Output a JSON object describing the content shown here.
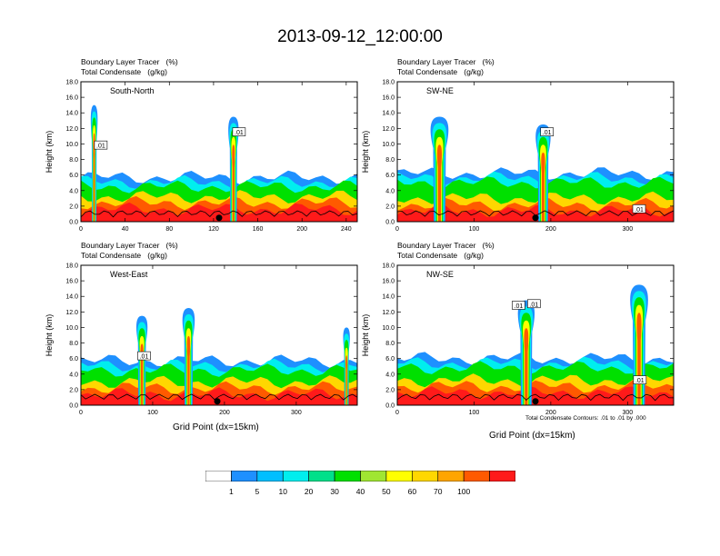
{
  "title": "2013-09-12_12:00:00",
  "footnote": "Total Condensate Contours: .01 to .01 by .000",
  "xlabel": "Grid Point (dx=15km)",
  "colorbar": {
    "colors": [
      "#ffffff",
      "#1e90ff",
      "#00bfff",
      "#00eeee",
      "#00e08a",
      "#00e000",
      "#a0e632",
      "#ffff00",
      "#ffd700",
      "#ffa500",
      "#ff5a00",
      "#ff1a1a"
    ],
    "labels": [
      "1",
      "5",
      "10",
      "20",
      "30",
      "40",
      "50",
      "60",
      "70",
      "100"
    ]
  },
  "chart_data": [
    {
      "type": "heatmap",
      "title_line1": "Boundary Layer Tracer   (%)",
      "title_line2": "Total Condensate   (g/kg)",
      "annotation": "South-North",
      "ylabel": "Height (km)",
      "xlabel": "",
      "xlim": [
        0,
        250
      ],
      "xticks": [
        "0",
        "40",
        "80",
        "120",
        "160",
        "200",
        "240"
      ],
      "xtick_values": [
        0,
        40,
        80,
        120,
        160,
        200,
        240
      ],
      "ylim": [
        0,
        18
      ],
      "yticks": [
        "0.0",
        "2.0",
        "4.0",
        "6.0",
        "8.0",
        "10.0",
        "12.0",
        "14.0",
        "16.0",
        "18.0"
      ],
      "contour_labels": [
        {
          "text": ".01",
          "x": 18,
          "y": 9.8
        },
        {
          "text": ".01",
          "x": 143,
          "y": 11.5
        }
      ],
      "marker_x": 125,
      "plumes": [
        {
          "x": 12,
          "top": 15,
          "w": 8
        },
        {
          "x": 138,
          "top": 13.5,
          "w": 12
        }
      ],
      "band": {
        "base_top": 3.2,
        "layer_top": 4.5
      }
    },
    {
      "type": "heatmap",
      "title_line1": "Boundary Layer Tracer   (%)",
      "title_line2": "Total Condensate   (g/kg)",
      "annotation": "SW-NE",
      "ylabel": "Height (km)",
      "xlabel": "",
      "xlim": [
        0,
        360
      ],
      "xticks": [
        "0",
        "100",
        "200",
        "300"
      ],
      "xtick_values": [
        0,
        100,
        200,
        300
      ],
      "ylim": [
        0,
        18
      ],
      "yticks": [
        "0.0",
        "2.0",
        "4.0",
        "6.0",
        "8.0",
        "10.0",
        "12.0",
        "14.0",
        "16.0",
        "18.0"
      ],
      "contour_labels": [
        {
          "text": ".01",
          "x": 195,
          "y": 11.5
        },
        {
          "text": ".01",
          "x": 315,
          "y": 1.6
        }
      ],
      "marker_x": 180,
      "plumes": [
        {
          "x": 55,
          "top": 13.5,
          "w": 30
        },
        {
          "x": 190,
          "top": 12.5,
          "w": 25
        }
      ],
      "band": {
        "base_top": 3.0,
        "layer_top": 5.0
      }
    },
    {
      "type": "heatmap",
      "title_line1": "Boundary Layer Tracer   (%)",
      "title_line2": "Total Condensate   (g/kg)",
      "annotation": "West-East",
      "ylabel": "Height (km)",
      "xlabel": "Grid Point (dx=15km)",
      "xlim": [
        0,
        385
      ],
      "xticks": [
        "0",
        "100",
        "200",
        "300"
      ],
      "xtick_values": [
        0,
        100,
        200,
        300
      ],
      "ylim": [
        0,
        18
      ],
      "yticks": [
        "0.0",
        "2.0",
        "4.0",
        "6.0",
        "8.0",
        "10.0",
        "12.0",
        "14.0",
        "16.0",
        "18.0"
      ],
      "contour_labels": [
        {
          "text": ".01",
          "x": 88,
          "y": 6.3
        }
      ],
      "marker_x": 190,
      "plumes": [
        {
          "x": 85,
          "top": 11.5,
          "w": 20
        },
        {
          "x": 150,
          "top": 12.5,
          "w": 22
        },
        {
          "x": 370,
          "top": 10,
          "w": 12
        }
      ],
      "band": {
        "base_top": 3.0,
        "layer_top": 4.5
      }
    },
    {
      "type": "heatmap",
      "title_line1": "Boundary Layer Tracer   (%)",
      "title_line2": "Total Condensate   (g/kg)",
      "annotation": "NW-SE",
      "ylabel": "Height (km)",
      "xlabel": "Grid Point (dx=15km)",
      "xlim": [
        0,
        360
      ],
      "xticks": [
        "0",
        "100",
        "200",
        "300"
      ],
      "xtick_values": [
        0,
        100,
        200,
        300
      ],
      "ylim": [
        0,
        18
      ],
      "yticks": [
        "0.0",
        "2.0",
        "4.0",
        "6.0",
        "8.0",
        "10.0",
        "12.0",
        "14.0",
        "16.0",
        "18.0"
      ],
      "contour_labels": [
        {
          "text": ".01",
          "x": 158,
          "y": 12.8
        },
        {
          "text": ".01",
          "x": 178,
          "y": 13
        },
        {
          "text": ".01",
          "x": 316,
          "y": 3.2
        }
      ],
      "marker_x": 180,
      "plumes": [
        {
          "x": 168,
          "top": 13.5,
          "w": 28
        },
        {
          "x": 315,
          "top": 15.5,
          "w": 30
        }
      ],
      "band": {
        "base_top": 3.2,
        "layer_top": 4.8
      }
    }
  ]
}
